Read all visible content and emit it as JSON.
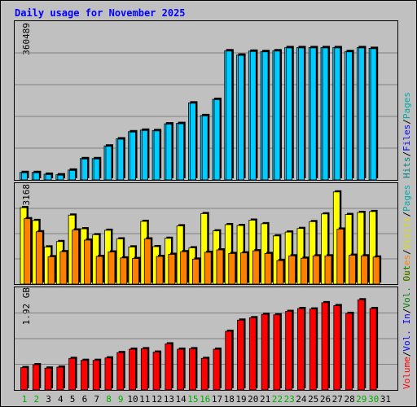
{
  "chart_data": [
    {
      "type": "bar",
      "title": "Daily usage for November 2025",
      "ylabel_top": "360489",
      "panel": "hits-files",
      "categories": [
        "1",
        "2",
        "3",
        "4",
        "5",
        "6",
        "7",
        "8",
        "9",
        "10",
        "11",
        "12",
        "13",
        "14",
        "15",
        "16",
        "17",
        "18",
        "19",
        "20",
        "21",
        "22",
        "23",
        "24",
        "25",
        "26",
        "27",
        "28",
        "29",
        "30",
        "31"
      ],
      "ylim": [
        0,
        360489
      ],
      "series": [
        {
          "name": "Hits",
          "color": "#00ccff",
          "values": [
            19000,
            19000,
            14500,
            13000,
            25000,
            54000,
            54000,
            86000,
            104000,
            122000,
            126000,
            125000,
            142000,
            143000,
            195000,
            163000,
            204000,
            327000,
            316000,
            326000,
            325000,
            327000,
            335000,
            335000,
            335000,
            335000,
            335000,
            325000,
            335000,
            333000,
            null
          ]
        },
        {
          "name": "Files",
          "color": "#0066ff",
          "values": [
            18000,
            18000,
            13500,
            12000,
            24000,
            53000,
            53000,
            85000,
            103000,
            121000,
            125000,
            124000,
            141000,
            142000,
            194000,
            162000,
            203000,
            326000,
            315000,
            325000,
            324000,
            326000,
            334000,
            334000,
            334000,
            334000,
            334000,
            324000,
            334000,
            332000,
            null
          ]
        }
      ],
      "legend_text": [
        "Hits",
        "/",
        "Files",
        "/",
        "Pages"
      ]
    },
    {
      "type": "bar",
      "panel": "visits-sites",
      "ylabel_top": "3168",
      "ylim": [
        0,
        3168
      ],
      "series": [
        {
          "name": "Visits",
          "color": "#ffff00",
          "values": [
            2570,
            2140,
            1250,
            1430,
            2320,
            1860,
            1660,
            1810,
            1520,
            1250,
            2110,
            1260,
            1540,
            1960,
            1220,
            2370,
            1790,
            2000,
            1970,
            2150,
            2030,
            1620,
            1750,
            1870,
            2100,
            2360,
            3100,
            2340,
            2410,
            2440,
            null
          ]
        },
        {
          "name": "Sites",
          "color": "#ff8000",
          "values": [
            2200,
            1760,
            920,
            1090,
            1820,
            1480,
            930,
            1080,
            880,
            860,
            1520,
            930,
            1000,
            1090,
            840,
            1070,
            1150,
            1030,
            1050,
            1120,
            1030,
            790,
            950,
            870,
            950,
            950,
            1850,
            970,
            950,
            910,
            null
          ]
        }
      ],
      "legend_text": [
        "Sites",
        "/",
        "Visits"
      ]
    },
    {
      "type": "bar",
      "panel": "volume",
      "ylabel_top": "1.92 GB",
      "ylim": [
        0,
        1.92
      ],
      "series": [
        {
          "name": "Vol. In",
          "color": "#0000ff",
          "values": []
        },
        {
          "name": "Vol. Out",
          "color": "#00aa00",
          "values": []
        },
        {
          "name": "Volume",
          "color": "#ff0000",
          "values": [
            0.46,
            0.52,
            0.45,
            0.47,
            0.65,
            0.61,
            0.61,
            0.66,
            0.77,
            0.84,
            0.85,
            0.78,
            0.95,
            0.84,
            0.85,
            0.65,
            0.84,
            1.21,
            1.44,
            1.49,
            1.56,
            1.55,
            1.62,
            1.68,
            1.67,
            1.8,
            1.74,
            1.58,
            1.86,
            1.68,
            null
          ]
        }
      ],
      "legend_text": [
        "Volume",
        "/",
        "Vol. In",
        "/",
        "Vol. Out"
      ]
    }
  ],
  "x_labels": [
    "1",
    "2",
    "3",
    "4",
    "5",
    "6",
    "7",
    "8",
    "9",
    "10",
    "11",
    "12",
    "13",
    "14",
    "15",
    "16",
    "17",
    "18",
    "19",
    "20",
    "21",
    "22",
    "23",
    "24",
    "25",
    "26",
    "27",
    "28",
    "29",
    "30",
    "31"
  ],
  "weekend_days": [
    "1",
    "2",
    "8",
    "9",
    "15",
    "16",
    "22",
    "23",
    "29",
    "30"
  ],
  "colors": {
    "title": "#0000ff",
    "background": "#c0c0c0",
    "weekend_label": "#00aa00",
    "weekday_label": "#000000",
    "grid": "#808080"
  }
}
